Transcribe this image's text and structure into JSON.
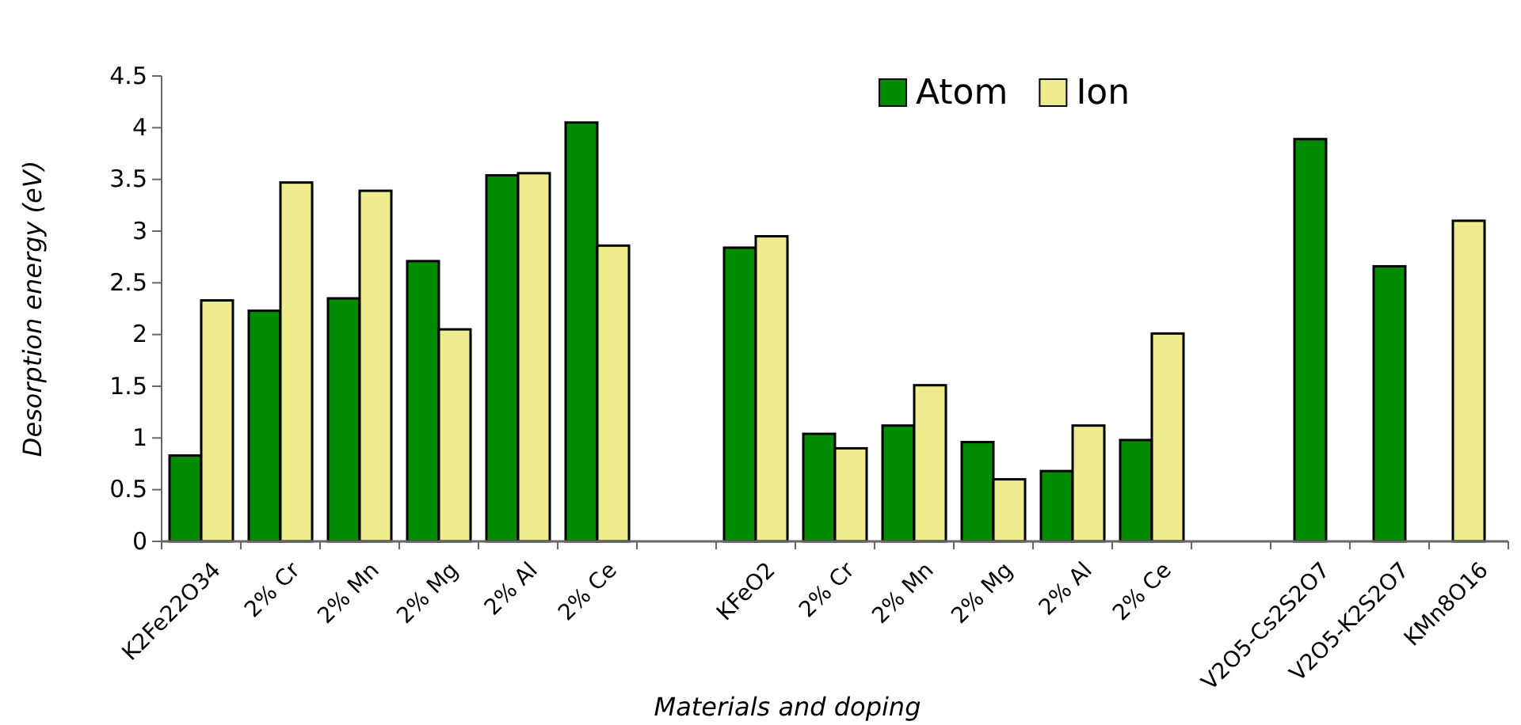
{
  "chart_data": {
    "type": "bar",
    "xlabel": "Materials and doping",
    "ylabel": "Desorption energy (eV)",
    "categories": [
      "K2Fe22O34",
      "2% Cr",
      "2% Mn",
      "2% Mg",
      "2% Al",
      "2% Ce",
      null,
      "KFeO2",
      "2% Cr",
      "2% Mn",
      "2% Mg",
      "2% Al",
      "2% Ce",
      null,
      "V2O5-Cs2S2O7",
      "V2O5-K2S2O7",
      "KMn8O16"
    ],
    "series": [
      {
        "name": "Atom",
        "color": "#008c00",
        "values": [
          0.83,
          2.23,
          2.35,
          2.71,
          3.54,
          4.05,
          null,
          2.84,
          1.04,
          1.12,
          0.96,
          0.68,
          0.98,
          null,
          3.89,
          2.66,
          null
        ]
      },
      {
        "name": "Ion",
        "color": "#eeec8c",
        "values": [
          2.33,
          3.47,
          3.39,
          2.05,
          3.56,
          2.86,
          null,
          2.95,
          0.9,
          1.51,
          0.6,
          1.12,
          2.01,
          null,
          null,
          null,
          3.1
        ]
      }
    ],
    "ylim": [
      0,
      4.5
    ],
    "yticks": [
      0,
      0.5,
      1,
      1.5,
      2,
      2.5,
      3,
      3.5,
      4,
      4.5
    ],
    "grid": false,
    "legend": "top"
  }
}
